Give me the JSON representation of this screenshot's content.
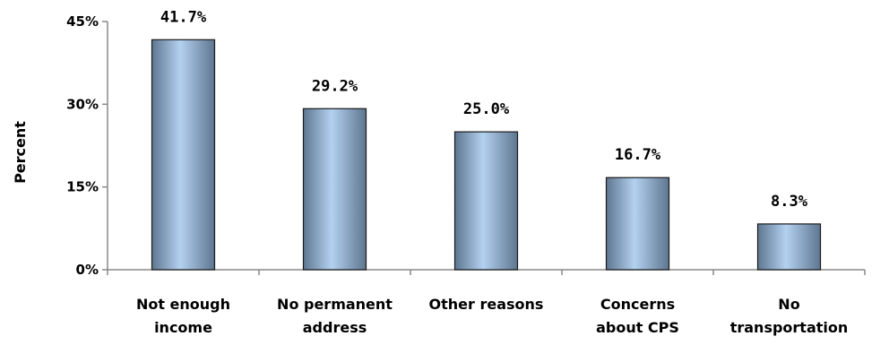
{
  "chart_data": {
    "type": "bar",
    "categories": [
      [
        "Not enough",
        "income"
      ],
      [
        "No permanent",
        "address"
      ],
      [
        "Other reasons"
      ],
      [
        "Concerns",
        "about CPS"
      ],
      [
        "No",
        "transportation"
      ]
    ],
    "values": [
      41.7,
      29.2,
      25.0,
      16.7,
      8.3
    ],
    "data_labels": [
      "41.7%",
      "29.2%",
      "25.0%",
      "16.7%",
      "8.3%"
    ],
    "ylabel": "Percent",
    "ylim": [
      0,
      45
    ],
    "yticks": [
      0,
      15,
      30,
      45
    ],
    "ytick_labels": [
      "0%",
      "15%",
      "30%",
      "45%"
    ],
    "grid": false,
    "bar_gradient": [
      "#5e7690",
      "#b3d1f0",
      "#5e7690"
    ]
  }
}
